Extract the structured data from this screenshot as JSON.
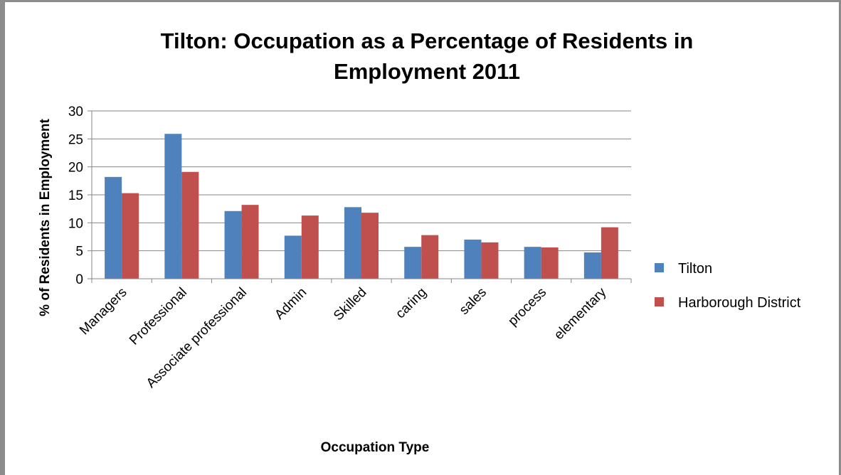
{
  "chart_data": {
    "type": "bar",
    "title_line1": "Tilton: Occupation as a Percentage of Residents in",
    "title_line2": "Employment 2011",
    "xlabel": "Occupation Type",
    "ylabel": "% of Residents in Employment",
    "ylim": [
      0,
      30
    ],
    "yticks": [
      "0",
      "5",
      "10",
      "15",
      "20",
      "25",
      "30"
    ],
    "grid": true,
    "legend_position": "right",
    "categories": [
      "Managers",
      "Professional",
      "Associate professional",
      "Admin",
      "Skilled",
      "caring",
      "sales",
      "process",
      "elementary"
    ],
    "series": [
      {
        "name": "Tilton",
        "color": "#4f81bd",
        "values": [
          18.2,
          25.9,
          12.1,
          7.7,
          12.8,
          5.7,
          7.0,
          5.7,
          4.7
        ]
      },
      {
        "name": "Harborough District",
        "color": "#c0504d",
        "values": [
          15.3,
          19.1,
          13.2,
          11.3,
          11.8,
          7.8,
          6.5,
          5.6,
          9.2
        ]
      }
    ]
  }
}
